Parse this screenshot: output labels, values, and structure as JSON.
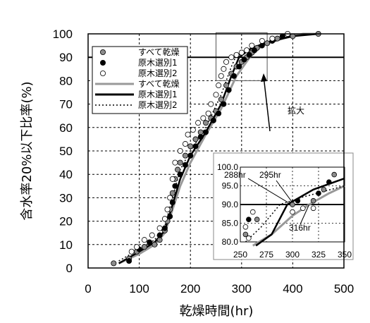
{
  "chart_data": {
    "type": "scatter",
    "title": "",
    "xlabel": "乾燥時間(hr)",
    "ylabel": "含水率20%以下比率(%)",
    "xlim": [
      0,
      500
    ],
    "ylim": [
      0,
      100
    ],
    "x_ticks": [
      "0",
      "100",
      "200",
      "300",
      "400",
      "500"
    ],
    "y_ticks": [
      "0",
      "10",
      "20",
      "30",
      "40",
      "50",
      "60",
      "70",
      "80",
      "90",
      "100"
    ],
    "grid": "dashed",
    "reference_line": 90,
    "legend_position": "top-left",
    "series": [
      {
        "name": "すべて乾燥",
        "kind": "points",
        "color": "#8c8c8c",
        "points": [
          [
            50,
            2
          ],
          [
            80,
            4
          ],
          [
            95,
            7
          ],
          [
            110,
            9
          ],
          [
            130,
            10
          ],
          [
            140,
            12
          ],
          [
            150,
            16
          ],
          [
            155,
            20
          ],
          [
            160,
            25
          ],
          [
            165,
            32
          ],
          [
            170,
            38
          ],
          [
            175,
            42
          ],
          [
            180,
            45
          ],
          [
            190,
            48
          ],
          [
            200,
            52
          ],
          [
            210,
            55
          ],
          [
            220,
            58
          ],
          [
            230,
            62
          ],
          [
            240,
            64
          ],
          [
            250,
            67
          ],
          [
            260,
            72
          ],
          [
            270,
            78
          ],
          [
            280,
            83
          ],
          [
            290,
            86
          ],
          [
            300,
            88
          ],
          [
            310,
            90
          ],
          [
            320,
            92
          ],
          [
            330,
            94
          ],
          [
            350,
            96
          ],
          [
            370,
            98
          ],
          [
            400,
            99
          ],
          [
            450,
            100
          ]
        ]
      },
      {
        "name": "原木選別1",
        "kind": "points",
        "color": "#000000",
        "points": [
          [
            80,
            3
          ],
          [
            100,
            8
          ],
          [
            120,
            11
          ],
          [
            140,
            14
          ],
          [
            150,
            17
          ],
          [
            160,
            22
          ],
          [
            165,
            28
          ],
          [
            170,
            35
          ],
          [
            180,
            40
          ],
          [
            190,
            44
          ],
          [
            200,
            48
          ],
          [
            210,
            52
          ],
          [
            220,
            56
          ],
          [
            230,
            58
          ],
          [
            245,
            63
          ],
          [
            255,
            66
          ],
          [
            265,
            70
          ],
          [
            275,
            76
          ],
          [
            285,
            82
          ],
          [
            295,
            86
          ],
          [
            305,
            89
          ],
          [
            315,
            91
          ],
          [
            325,
            93
          ],
          [
            340,
            95
          ],
          [
            360,
            97
          ],
          [
            380,
            99
          ]
        ]
      },
      {
        "name": "原木選別2",
        "kind": "points",
        "color": "#ffffff",
        "points": [
          [
            85,
            7
          ],
          [
            95,
            9
          ],
          [
            110,
            12
          ],
          [
            125,
            14
          ],
          [
            140,
            17
          ],
          [
            150,
            21
          ],
          [
            155,
            25
          ],
          [
            160,
            30
          ],
          [
            165,
            38
          ],
          [
            170,
            45
          ],
          [
            180,
            50
          ],
          [
            190,
            53
          ],
          [
            195,
            57
          ],
          [
            205,
            59
          ],
          [
            215,
            62
          ],
          [
            225,
            64
          ],
          [
            235,
            66
          ],
          [
            240,
            70
          ],
          [
            250,
            74
          ],
          [
            255,
            78
          ],
          [
            260,
            82
          ],
          [
            265,
            85
          ],
          [
            270,
            88
          ],
          [
            280,
            90
          ],
          [
            290,
            91
          ],
          [
            300,
            92
          ],
          [
            310,
            93
          ],
          [
            320,
            95
          ],
          [
            340,
            97
          ],
          [
            360,
            98
          ],
          [
            390,
            100
          ]
        ]
      },
      {
        "name": "すべて乾燥",
        "kind": "line",
        "color": "#999999",
        "points": [
          [
            60,
            2
          ],
          [
            100,
            6
          ],
          [
            130,
            10
          ],
          [
            150,
            15
          ],
          [
            165,
            25
          ],
          [
            180,
            35
          ],
          [
            200,
            45
          ],
          [
            230,
            57
          ],
          [
            260,
            68
          ],
          [
            290,
            82
          ],
          [
            316,
            90
          ],
          [
            340,
            95
          ],
          [
            380,
            98
          ],
          [
            420,
            100
          ],
          [
            450,
            100
          ]
        ]
      },
      {
        "name": "原木選別1",
        "kind": "line",
        "color": "#000000",
        "points": [
          [
            60,
            2
          ],
          [
            100,
            7
          ],
          [
            130,
            11
          ],
          [
            150,
            16
          ],
          [
            165,
            27
          ],
          [
            180,
            38
          ],
          [
            200,
            48
          ],
          [
            230,
            58
          ],
          [
            260,
            70
          ],
          [
            280,
            82
          ],
          [
            295,
            90
          ],
          [
            320,
            94
          ],
          [
            360,
            97
          ],
          [
            400,
            99
          ],
          [
            450,
            100
          ]
        ]
      },
      {
        "name": "原木選別2",
        "kind": "dotted",
        "color": "#000000",
        "points": [
          [
            60,
            3
          ],
          [
            100,
            8
          ],
          [
            130,
            12
          ],
          [
            150,
            18
          ],
          [
            165,
            30
          ],
          [
            180,
            42
          ],
          [
            200,
            50
          ],
          [
            230,
            60
          ],
          [
            260,
            74
          ],
          [
            280,
            86
          ],
          [
            288,
            90
          ],
          [
            310,
            93
          ],
          [
            350,
            96
          ],
          [
            400,
            99
          ],
          [
            450,
            100
          ]
        ]
      }
    ],
    "annotations": {
      "zoom_label": "拡大",
      "inset_labels": [
        "288hr",
        "295hr",
        "316hr"
      ],
      "inset_xlim": [
        250,
        350
      ],
      "inset_ylim": [
        80,
        100
      ],
      "inset_x_ticks": [
        "250",
        "275",
        "300",
        "325",
        "350"
      ],
      "inset_y_ticks": [
        "80.0",
        "85.0",
        "90.0",
        "95.0",
        "100.0"
      ]
    }
  }
}
